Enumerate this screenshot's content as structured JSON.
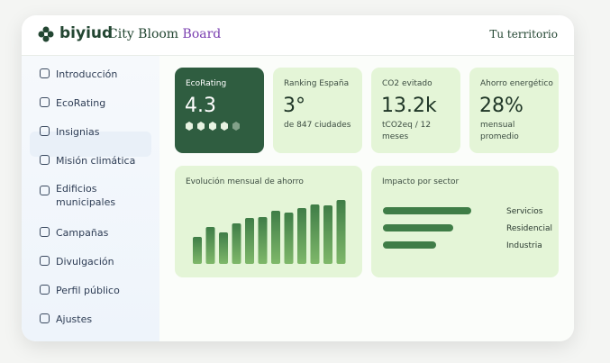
{
  "header": {
    "logo": "biyiud",
    "title_main": "City Bloom ",
    "title_accent": "Board",
    "territory": "Tu territorio"
  },
  "nav": [
    "Introducción",
    "EcoRating",
    "Insignias",
    "Misión climática",
    "Edificios municipales",
    "Campañas",
    "Divulgación",
    "Perfil público",
    "Ajustes"
  ],
  "cards": [
    {
      "label": "EcoRating",
      "value": "4.3"
    },
    {
      "label": "Ranking España",
      "value": "3°",
      "sub": "de 847 ciudades"
    },
    {
      "label": "CO2 evitado",
      "value": "13.2k",
      "sub": "tCO2eq / 12 meses"
    },
    {
      "label": "Ahorro energético",
      "value": "28%",
      "sub": "mensual promedio"
    }
  ],
  "chart_data": [
    {
      "type": "bar",
      "title": "Evolución mensual de ahorro",
      "values": [
        30,
        41,
        35,
        45,
        51,
        52,
        59,
        57,
        62,
        66,
        65,
        71
      ],
      "color": "#3f7d47"
    },
    {
      "type": "barh",
      "title": "Impacto por sector",
      "categories": [
        "Servicios",
        "Residencial",
        "Industria"
      ],
      "values": [
        98,
        78,
        59
      ],
      "color": "#3f7d47"
    }
  ]
}
